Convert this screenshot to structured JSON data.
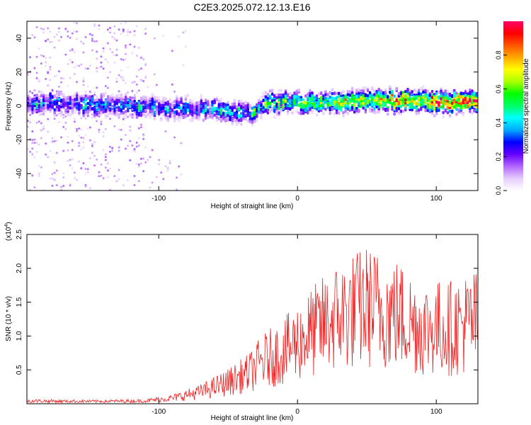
{
  "figure": {
    "title": "C2E3.2025.072.12.13.E16"
  },
  "chart_data": [
    {
      "type": "heatmap",
      "xlabel": "Height of straight line (km)",
      "ylabel": "Frequency (Hz)",
      "xlim": [
        -195,
        130
      ],
      "ylim": [
        -50,
        50
      ],
      "x_ticks": [
        {
          "value": -100,
          "label": "-100"
        },
        {
          "value": 0,
          "label": "0"
        },
        {
          "value": 100,
          "label": "100"
        }
      ],
      "y_ticks": [
        {
          "value": 40,
          "label": "40"
        },
        {
          "value": 20,
          "label": "20"
        },
        {
          "value": 0,
          "label": "0"
        },
        {
          "value": -20,
          "label": "-20"
        },
        {
          "value": -40,
          "label": "-40"
        }
      ],
      "colorbar": {
        "label": "Normalized spectral amplitude",
        "range": [
          0,
          1
        ],
        "ticks": [
          {
            "value": 0.0,
            "label": "0.0"
          },
          {
            "value": 0.2,
            "label": "0.2"
          },
          {
            "value": 0.4,
            "label": "0.4"
          },
          {
            "value": 0.6,
            "label": "0.6"
          },
          {
            "value": 0.8,
            "label": "0.8"
          }
        ],
        "colors": [
          "#ffffff",
          "#e6ccff",
          "#b366ff",
          "#6600ff",
          "#0000ff",
          "#00aaff",
          "#00ffff",
          "#00ff66",
          "#00ff00",
          "#aaff00",
          "#ffff00",
          "#ffaa00",
          "#ff5500",
          "#ff0000",
          "#ff0066"
        ]
      },
      "ridge": [
        {
          "x": -195,
          "y": 1
        },
        {
          "x": -180,
          "y": 2
        },
        {
          "x": -160,
          "y": 1
        },
        {
          "x": -140,
          "y": 0
        },
        {
          "x": -120,
          "y": 0
        },
        {
          "x": -100,
          "y": -1
        },
        {
          "x": -80,
          "y": -2
        },
        {
          "x": -60,
          "y": -2
        },
        {
          "x": -45,
          "y": -4
        },
        {
          "x": -35,
          "y": -4
        },
        {
          "x": -25,
          "y": -1
        },
        {
          "x": -20,
          "y": 2
        },
        {
          "x": 0,
          "y": 2
        },
        {
          "x": 20,
          "y": 2
        },
        {
          "x": 40,
          "y": 2
        },
        {
          "x": 60,
          "y": 3
        },
        {
          "x": 80,
          "y": 3
        },
        {
          "x": 100,
          "y": 2
        },
        {
          "x": 130,
          "y": 2
        }
      ]
    },
    {
      "type": "line",
      "xlabel": "Height of straight line (km)",
      "ylabel": "SNR (10 * v/v)",
      "y_multiplier": "(x10",
      "y_multiplier_exp": "4",
      "xlim": [
        -195,
        130
      ],
      "ylim": [
        0,
        2.5
      ],
      "color": "#ee2222",
      "x_ticks": [
        {
          "value": -100,
          "label": "-100"
        },
        {
          "value": 0,
          "label": "0"
        },
        {
          "value": 100,
          "label": "100"
        }
      ],
      "y_ticks": [
        {
          "value": 0.5,
          "label": "0.5"
        },
        {
          "value": 1.0,
          "label": "1.0"
        },
        {
          "value": 1.5,
          "label": "1.5"
        },
        {
          "value": 2.0,
          "label": "2.0"
        },
        {
          "value": 2.5,
          "label": "2.5"
        }
      ],
      "envelope": [
        {
          "x": -195,
          "y": 0.06
        },
        {
          "x": -150,
          "y": 0.05
        },
        {
          "x": -110,
          "y": 0.06
        },
        {
          "x": -90,
          "y": 0.12
        },
        {
          "x": -70,
          "y": 0.25
        },
        {
          "x": -50,
          "y": 0.45
        },
        {
          "x": -35,
          "y": 0.65
        },
        {
          "x": -25,
          "y": 0.9
        },
        {
          "x": -10,
          "y": 1.1
        },
        {
          "x": 0,
          "y": 1.3
        },
        {
          "x": 10,
          "y": 1.5
        },
        {
          "x": 30,
          "y": 1.85
        },
        {
          "x": 50,
          "y": 2.05
        },
        {
          "x": 70,
          "y": 1.9
        },
        {
          "x": 90,
          "y": 1.6
        },
        {
          "x": 110,
          "y": 1.6
        },
        {
          "x": 130,
          "y": 1.75
        }
      ]
    }
  ]
}
